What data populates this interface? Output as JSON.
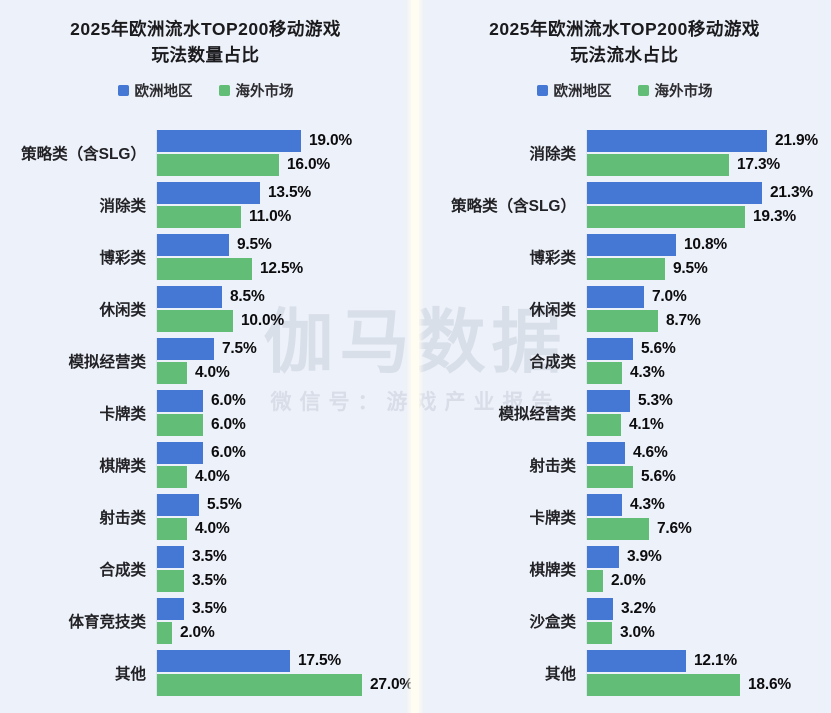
{
  "watermark": {
    "brand": "伽马数据",
    "sub": "微信号：游戏产业报告"
  },
  "colors": {
    "background": "#edf1f9",
    "divider": "#fffdf2",
    "europe_blue": "#4478d4",
    "overseas_green": "#62bd76",
    "watermark_gray": "#c7cedb"
  },
  "chart_data": [
    {
      "type": "bar",
      "orientation": "horizontal",
      "title_line1": "2025年欧洲流水TOP200移动游戏",
      "title_line2": "玩法数量占比",
      "legend_position": "top",
      "grid": false,
      "value_suffix": "%",
      "xmax": 27.0,
      "categories": [
        "策略类（含SLG）",
        "消除类",
        "博彩类",
        "休闲类",
        "模拟经营类",
        "卡牌类",
        "棋牌类",
        "射击类",
        "合成类",
        "体育竞技类",
        "其他"
      ],
      "series": [
        {
          "name": "欧洲地区",
          "color": "#4478d4",
          "values": [
            19.0,
            13.5,
            9.5,
            8.5,
            7.5,
            6.0,
            6.0,
            5.5,
            3.5,
            3.5,
            17.5
          ]
        },
        {
          "name": "海外市场",
          "color": "#62bd76",
          "values": [
            16.0,
            11.0,
            12.5,
            10.0,
            4.0,
            6.0,
            4.0,
            4.0,
            3.5,
            2.0,
            27.0
          ]
        }
      ]
    },
    {
      "type": "bar",
      "orientation": "horizontal",
      "title_line1": "2025年欧洲流水TOP200移动游戏",
      "title_line2": "玩法流水占比",
      "legend_position": "top",
      "grid": false,
      "value_suffix": "%",
      "xmax": 21.9,
      "categories": [
        "消除类",
        "策略类（含SLG）",
        "博彩类",
        "休闲类",
        "合成类",
        "模拟经营类",
        "射击类",
        "卡牌类",
        "棋牌类",
        "沙盒类",
        "其他"
      ],
      "series": [
        {
          "name": "欧洲地区",
          "color": "#4478d4",
          "values": [
            21.9,
            21.3,
            10.8,
            7.0,
            5.6,
            5.3,
            4.6,
            4.3,
            3.9,
            3.2,
            12.1
          ]
        },
        {
          "name": "海外市场",
          "color": "#62bd76",
          "values": [
            17.3,
            19.3,
            9.5,
            8.7,
            4.3,
            4.1,
            5.6,
            7.6,
            2.0,
            3.0,
            18.6
          ]
        }
      ]
    }
  ]
}
